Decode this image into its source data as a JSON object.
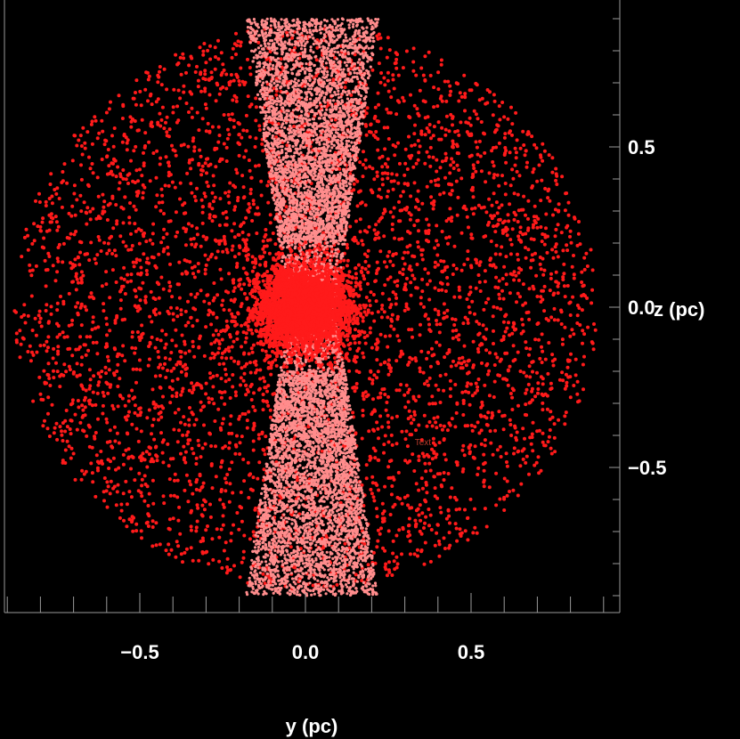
{
  "chart_data": {
    "type": "scatter",
    "xlabel": "y (pc)",
    "ylabel": "z (pc)",
    "xlim": [
      -0.93,
      0.93
    ],
    "ylim": [
      -0.93,
      0.93
    ],
    "x_ticks": [
      {
        "value": -0.5,
        "label": "−0.5"
      },
      {
        "value": 0.0,
        "label": "0.0"
      },
      {
        "value": 0.5,
        "label": "0.5"
      }
    ],
    "y_ticks": [
      {
        "value": 0.5,
        "label": "0.5"
      },
      {
        "value": 0.0,
        "label": "0.0"
      },
      {
        "value": -0.5,
        "label": "−0.5"
      }
    ],
    "grid": false,
    "background": "#000000",
    "annotations": [
      {
        "text": "Text",
        "x": 0.33,
        "y": -0.43
      }
    ],
    "series": [
      {
        "color": "#ff1a1a",
        "shape": "sphere",
        "radius": 0.88,
        "count": 7000,
        "description_values": "dense core within r < 0.15, sparse halo out to r = 0.88"
      },
      {
        "color": "#ff8c8c",
        "shape": "hourglass",
        "z_range": [
          -0.9,
          0.9
        ],
        "half_width_at_center": 0.07,
        "half_width_at_ends": 0.2,
        "count": 9000
      }
    ]
  }
}
